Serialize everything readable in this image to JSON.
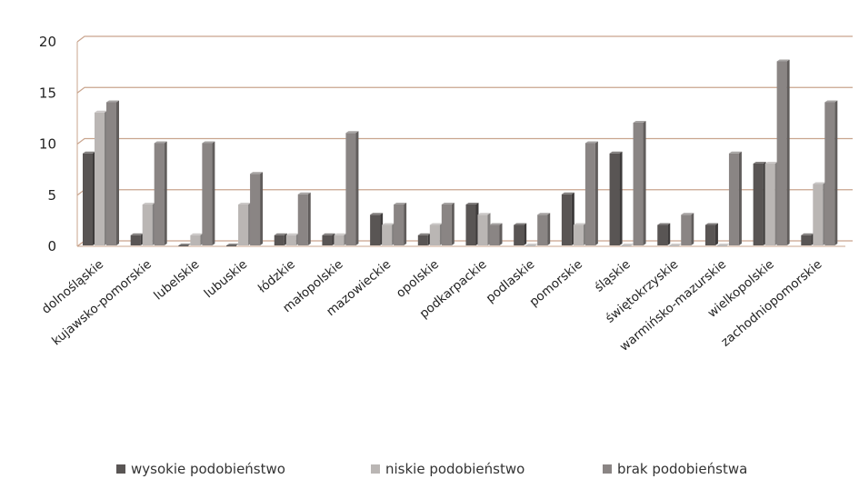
{
  "chart_data": {
    "type": "bar",
    "categories": [
      "dolnośląskie",
      "kujawsko-pomorskie",
      "lubelskie",
      "lubuskie",
      "łódzkie",
      "małopolskie",
      "mazowieckie",
      "opolskie",
      "podkarpackie",
      "podlaskie",
      "pomorskie",
      "śląskie",
      "świętokrzyskie",
      "warmińsko-mazurskie",
      "wielkopolskie",
      "zachodniopomorskie"
    ],
    "series": [
      {
        "name": "wysokie podobieństwo",
        "color": "#595554",
        "values": [
          9,
          1,
          0,
          0,
          1,
          1,
          3,
          1,
          4,
          2,
          5,
          9,
          2,
          2,
          8,
          1
        ]
      },
      {
        "name": "niskie podobieństwo",
        "color": "#bab6b4",
        "values": [
          13,
          4,
          1,
          4,
          1,
          1,
          2,
          2,
          3,
          0,
          2,
          0,
          0,
          0,
          8,
          6
        ]
      },
      {
        "name": "brak podobieństwa",
        "color": "#8a8584",
        "values": [
          14,
          10,
          10,
          7,
          5,
          11,
          4,
          4,
          2,
          3,
          10,
          12,
          3,
          9,
          18,
          14
        ]
      }
    ],
    "ylim": [
      0,
      20
    ],
    "yticks": [
      "0",
      "5",
      "10",
      "15",
      "20"
    ],
    "grid": true,
    "gridline_color": "#c9a58e",
    "legend_position": "bottom",
    "title": "",
    "xlabel": "",
    "ylabel": ""
  }
}
